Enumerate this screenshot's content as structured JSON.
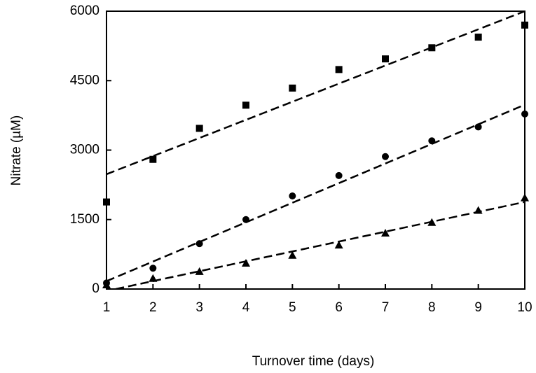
{
  "chart_data": {
    "type": "scatter",
    "x_label": "Turnover time (days)",
    "y_label": "Nitrate (µM)",
    "x": [
      1,
      2,
      3,
      4,
      5,
      6,
      7,
      8,
      9,
      10
    ],
    "series": [
      {
        "marker": "square",
        "color": "#000000",
        "values": [
          1880,
          2800,
          3470,
          3970,
          4340,
          4740,
          4970,
          5210,
          5440,
          5700
        ],
        "trend": {
          "x": [
            1,
            10
          ],
          "y": [
            2480,
            6000
          ]
        }
      },
      {
        "marker": "circle",
        "color": "#000000",
        "values": [
          130,
          450,
          980,
          1500,
          2010,
          2450,
          2860,
          3200,
          3500,
          3780
        ],
        "trend": {
          "x": [
            1,
            10
          ],
          "y": [
            170,
            3980
          ]
        }
      },
      {
        "marker": "triangle",
        "color": "#000000",
        "values": [
          90,
          230,
          380,
          560,
          730,
          950,
          1210,
          1440,
          1700,
          1970
        ],
        "trend": {
          "x": [
            1.2,
            10
          ],
          "y": [
            0,
            1880
          ]
        }
      }
    ],
    "xlim": [
      1,
      10
    ],
    "xticks": [
      1,
      2,
      3,
      4,
      5,
      6,
      7,
      8,
      9,
      10
    ],
    "ylim": [
      0,
      6000
    ],
    "yticks": [
      0,
      1500,
      3000,
      4500,
      6000
    ]
  }
}
